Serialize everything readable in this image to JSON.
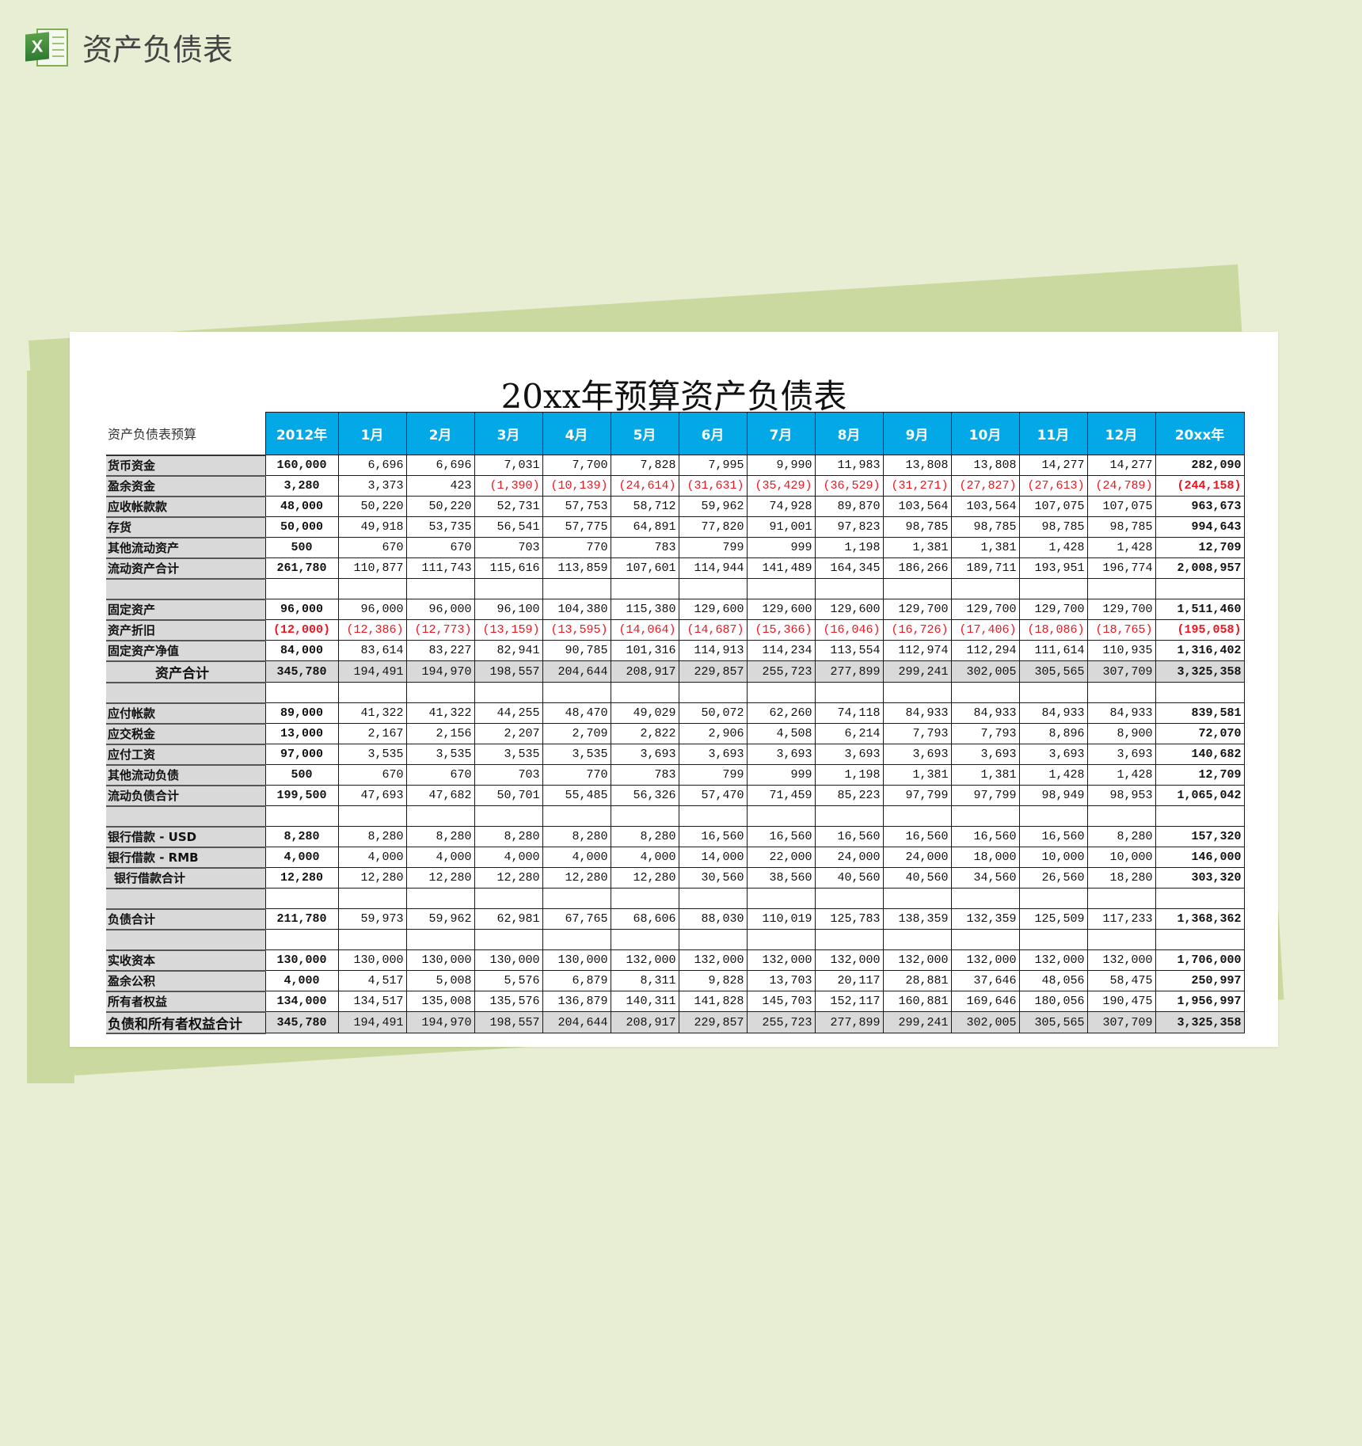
{
  "app": {
    "title": "资产负债表",
    "icon": "excel-icon",
    "icon_letter": "X"
  },
  "document": {
    "title": "20xx年预算资产负债表"
  },
  "colors": {
    "header_bg": "#03a8e6",
    "negative": "#f0141e",
    "label_bg": "#d9d9d9",
    "page_bg": "#e8eed3"
  },
  "table": {
    "corner_label": "资产负债表预算",
    "columns": [
      "2012年",
      "1月",
      "2月",
      "3月",
      "4月",
      "5月",
      "6月",
      "7月",
      "8月",
      "9月",
      "10月",
      "11月",
      "12月",
      "20xx年"
    ],
    "rows": [
      {
        "label": "货币资金",
        "kind": "item",
        "values": [
          "160,000",
          "6,696",
          "6,696",
          "7,031",
          "7,700",
          "7,828",
          "7,995",
          "9,990",
          "11,983",
          "13,808",
          "13,808",
          "14,277",
          "14,277",
          "282,090"
        ]
      },
      {
        "label": "盈余资金",
        "kind": "item",
        "values": [
          "3,280",
          "3,373",
          "423",
          "(1,390)",
          "(10,139)",
          "(24,614)",
          "(31,631)",
          "(35,429)",
          "(36,529)",
          "(31,271)",
          "(27,827)",
          "(27,613)",
          "(24,789)",
          "(244,158)"
        ]
      },
      {
        "label": "应收帐款款",
        "kind": "item",
        "values": [
          "48,000",
          "50,220",
          "50,220",
          "52,731",
          "57,753",
          "58,712",
          "59,962",
          "74,928",
          "89,870",
          "103,564",
          "103,564",
          "107,075",
          "107,075",
          "963,673"
        ]
      },
      {
        "label": "存货",
        "kind": "item",
        "values": [
          "50,000",
          "49,918",
          "53,735",
          "56,541",
          "57,775",
          "64,891",
          "77,820",
          "91,001",
          "97,823",
          "98,785",
          "98,785",
          "98,785",
          "98,785",
          "994,643"
        ]
      },
      {
        "label": "其他流动资产",
        "kind": "item",
        "values": [
          "500",
          "670",
          "670",
          "703",
          "770",
          "783",
          "799",
          "999",
          "1,198",
          "1,381",
          "1,381",
          "1,428",
          "1,428",
          "12,709"
        ]
      },
      {
        "label": "流动资产合计",
        "kind": "item",
        "values": [
          "261,780",
          "110,877",
          "111,743",
          "115,616",
          "113,859",
          "107,601",
          "114,944",
          "141,489",
          "164,345",
          "186,266",
          "189,711",
          "193,951",
          "196,774",
          "2,008,957"
        ]
      },
      {
        "label": "",
        "kind": "blank",
        "values": [
          "",
          "",
          "",
          "",
          "",
          "",
          "",
          "",
          "",
          "",
          "",
          "",
          "",
          ""
        ]
      },
      {
        "label": "固定资产",
        "kind": "item",
        "values": [
          "96,000",
          "96,000",
          "96,000",
          "96,100",
          "104,380",
          "115,380",
          "129,600",
          "129,600",
          "129,600",
          "129,700",
          "129,700",
          "129,700",
          "129,700",
          "1,511,460"
        ]
      },
      {
        "label": "资产折旧",
        "kind": "item",
        "values": [
          "(12,000)",
          "(12,386)",
          "(12,773)",
          "(13,159)",
          "(13,595)",
          "(14,064)",
          "(14,687)",
          "(15,366)",
          "(16,046)",
          "(16,726)",
          "(17,406)",
          "(18,086)",
          "(18,765)",
          "(195,058)"
        ]
      },
      {
        "label": "固定资产净值",
        "kind": "item",
        "values": [
          "84,000",
          "83,614",
          "83,227",
          "82,941",
          "90,785",
          "101,316",
          "114,913",
          "114,234",
          "113,554",
          "112,974",
          "112,294",
          "111,614",
          "110,935",
          "1,316,402"
        ]
      },
      {
        "label": "资产合计",
        "kind": "grand asset",
        "values": [
          "345,780",
          "194,491",
          "194,970",
          "198,557",
          "204,644",
          "208,917",
          "229,857",
          "255,723",
          "277,899",
          "299,241",
          "302,005",
          "305,565",
          "307,709",
          "3,325,358"
        ]
      },
      {
        "label": "",
        "kind": "blank",
        "values": [
          "",
          "",
          "",
          "",
          "",
          "",
          "",
          "",
          "",
          "",
          "",
          "",
          "",
          ""
        ]
      },
      {
        "label": "应付帐款",
        "kind": "item",
        "values": [
          "89,000",
          "41,322",
          "41,322",
          "44,255",
          "48,470",
          "49,029",
          "50,072",
          "62,260",
          "74,118",
          "84,933",
          "84,933",
          "84,933",
          "84,933",
          "839,581"
        ]
      },
      {
        "label": "应交税金",
        "kind": "item",
        "values": [
          "13,000",
          "2,167",
          "2,156",
          "2,207",
          "2,709",
          "2,822",
          "2,906",
          "4,508",
          "6,214",
          "7,793",
          "7,793",
          "8,896",
          "8,900",
          "72,070"
        ]
      },
      {
        "label": "应付工资",
        "kind": "item",
        "values": [
          "97,000",
          "3,535",
          "3,535",
          "3,535",
          "3,535",
          "3,693",
          "3,693",
          "3,693",
          "3,693",
          "3,693",
          "3,693",
          "3,693",
          "3,693",
          "140,682"
        ]
      },
      {
        "label": "其他流动负债",
        "kind": "item",
        "values": [
          "500",
          "670",
          "670",
          "703",
          "770",
          "783",
          "799",
          "999",
          "1,198",
          "1,381",
          "1,381",
          "1,428",
          "1,428",
          "12,709"
        ]
      },
      {
        "label": "流动负债合计",
        "kind": "item",
        "values": [
          "199,500",
          "47,693",
          "47,682",
          "50,701",
          "55,485",
          "56,326",
          "57,470",
          "71,459",
          "85,223",
          "97,799",
          "97,799",
          "98,949",
          "98,953",
          "1,065,042"
        ]
      },
      {
        "label": "",
        "kind": "blank",
        "values": [
          "",
          "",
          "",
          "",
          "",
          "",
          "",
          "",
          "",
          "",
          "",
          "",
          "",
          ""
        ]
      },
      {
        "label": "银行借款 - USD",
        "kind": "item",
        "values": [
          "8,280",
          "8,280",
          "8,280",
          "8,280",
          "8,280",
          "8,280",
          "16,560",
          "16,560",
          "16,560",
          "16,560",
          "16,560",
          "16,560",
          "8,280",
          "157,320"
        ]
      },
      {
        "label": "银行借款 - RMB",
        "kind": "item",
        "values": [
          "4,000",
          "4,000",
          "4,000",
          "4,000",
          "4,000",
          "4,000",
          "14,000",
          "22,000",
          "24,000",
          "24,000",
          "18,000",
          "10,000",
          "10,000",
          "146,000"
        ]
      },
      {
        "label": "银行借款合计",
        "kind": "sub",
        "values": [
          "12,280",
          "12,280",
          "12,280",
          "12,280",
          "12,280",
          "12,280",
          "30,560",
          "38,560",
          "40,560",
          "40,560",
          "34,560",
          "26,560",
          "18,280",
          "303,320"
        ]
      },
      {
        "label": "",
        "kind": "blank",
        "values": [
          "",
          "",
          "",
          "",
          "",
          "",
          "",
          "",
          "",
          "",
          "",
          "",
          "",
          ""
        ]
      },
      {
        "label": "负债合计",
        "kind": "item",
        "values": [
          "211,780",
          "59,973",
          "59,962",
          "62,981",
          "67,765",
          "68,606",
          "88,030",
          "110,019",
          "125,783",
          "138,359",
          "132,359",
          "125,509",
          "117,233",
          "1,368,362"
        ]
      },
      {
        "label": "",
        "kind": "blank",
        "values": [
          "",
          "",
          "",
          "",
          "",
          "",
          "",
          "",
          "",
          "",
          "",
          "",
          "",
          ""
        ]
      },
      {
        "label": "实收资本",
        "kind": "item",
        "values": [
          "130,000",
          "130,000",
          "130,000",
          "130,000",
          "130,000",
          "132,000",
          "132,000",
          "132,000",
          "132,000",
          "132,000",
          "132,000",
          "132,000",
          "132,000",
          "1,706,000"
        ]
      },
      {
        "label": "盈余公积",
        "kind": "item",
        "values": [
          "4,000",
          "4,517",
          "5,008",
          "5,576",
          "6,879",
          "8,311",
          "9,828",
          "13,703",
          "20,117",
          "28,881",
          "37,646",
          "48,056",
          "58,475",
          "250,997"
        ]
      },
      {
        "label": "所有者权益",
        "kind": "item",
        "values": [
          "134,000",
          "134,517",
          "135,008",
          "135,576",
          "136,879",
          "140,311",
          "141,828",
          "145,703",
          "152,117",
          "160,881",
          "169,646",
          "180,056",
          "190,475",
          "1,956,997"
        ]
      },
      {
        "label": "负债和所有者权益合计",
        "kind": "grand",
        "values": [
          "345,780",
          "194,491",
          "194,970",
          "198,557",
          "204,644",
          "208,917",
          "229,857",
          "255,723",
          "277,899",
          "299,241",
          "302,005",
          "305,565",
          "307,709",
          "3,325,358"
        ]
      }
    ]
  }
}
